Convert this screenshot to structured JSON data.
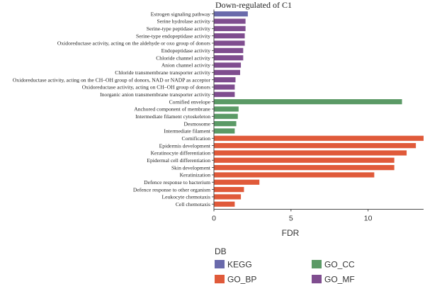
{
  "chart_data": {
    "type": "bar",
    "orientation": "horizontal",
    "title": "Down-regulated of C1",
    "xlabel": "FDR",
    "ylabel": "",
    "xlim": [
      0,
      13.6
    ],
    "xticks": [
      0,
      5,
      10
    ],
    "grid": false,
    "legend": {
      "title": "DB",
      "placement": "bottom",
      "items": [
        {
          "name": "KEGG",
          "color": "#6a6aab"
        },
        {
          "name": "GO_CC",
          "color": "#5b9a66"
        },
        {
          "name": "GO_BP",
          "color": "#e05a3a"
        },
        {
          "name": "GO_MF",
          "color": "#7f4d8f"
        }
      ]
    },
    "bars": [
      {
        "label": "Estrogen signaling pathway",
        "value": 2.2,
        "db": "KEGG"
      },
      {
        "label": "Serine hydrolase activity",
        "value": 2.05,
        "db": "GO_MF"
      },
      {
        "label": "Serine-type peptidase activity",
        "value": 2.05,
        "db": "GO_MF"
      },
      {
        "label": "Serine-type endopeptidase activity",
        "value": 2.0,
        "db": "GO_MF"
      },
      {
        "label": "Oxidoreductase activity, acting on the aldehyde or oxo group of donors",
        "value": 2.0,
        "db": "GO_MF"
      },
      {
        "label": "Endopeptidase activity",
        "value": 1.9,
        "db": "GO_MF"
      },
      {
        "label": "Chloride channel activity",
        "value": 1.9,
        "db": "GO_MF"
      },
      {
        "label": "Anion channel activity",
        "value": 1.75,
        "db": "GO_MF"
      },
      {
        "label": "Chloride transmembrane transporter activity",
        "value": 1.7,
        "db": "GO_MF"
      },
      {
        "label": "Oxidoreductase activity, acting on the CH–OH group of donors, NAD or NADP as acceptor",
        "value": 1.4,
        "db": "GO_MF"
      },
      {
        "label": "Oxidoreductase activity, acting on CH–OH group of donors",
        "value": 1.35,
        "db": "GO_MF"
      },
      {
        "label": "Inorganic anion transmembrane transporter activity",
        "value": 1.35,
        "db": "GO_MF"
      },
      {
        "label": "Cornified envelope",
        "value": 12.2,
        "db": "GO_CC"
      },
      {
        "label": "Anchored component of membrane",
        "value": 1.6,
        "db": "GO_CC"
      },
      {
        "label": "Intermediate filament cytoskeleton",
        "value": 1.55,
        "db": "GO_CC"
      },
      {
        "label": "Desmosome",
        "value": 1.45,
        "db": "GO_CC"
      },
      {
        "label": "Intermediate filament",
        "value": 1.35,
        "db": "GO_CC"
      },
      {
        "label": "Cornification",
        "value": 13.6,
        "db": "GO_BP"
      },
      {
        "label": "Epidermis development",
        "value": 13.1,
        "db": "GO_BP"
      },
      {
        "label": "Keratinocyte differentiation",
        "value": 12.5,
        "db": "GO_BP"
      },
      {
        "label": "Epidermal cell differentiation",
        "value": 11.7,
        "db": "GO_BP"
      },
      {
        "label": "Skin development",
        "value": 11.7,
        "db": "GO_BP"
      },
      {
        "label": "Keratinization",
        "value": 10.4,
        "db": "GO_BP"
      },
      {
        "label": "Defence response to bacterium",
        "value": 2.95,
        "db": "GO_BP"
      },
      {
        "label": "Defence response to other organism",
        "value": 1.95,
        "db": "GO_BP"
      },
      {
        "label": "Leukocyte chemotaxis",
        "value": 1.75,
        "db": "GO_BP"
      },
      {
        "label": "Cell chemotaxis",
        "value": 1.35,
        "db": "GO_BP"
      }
    ]
  }
}
